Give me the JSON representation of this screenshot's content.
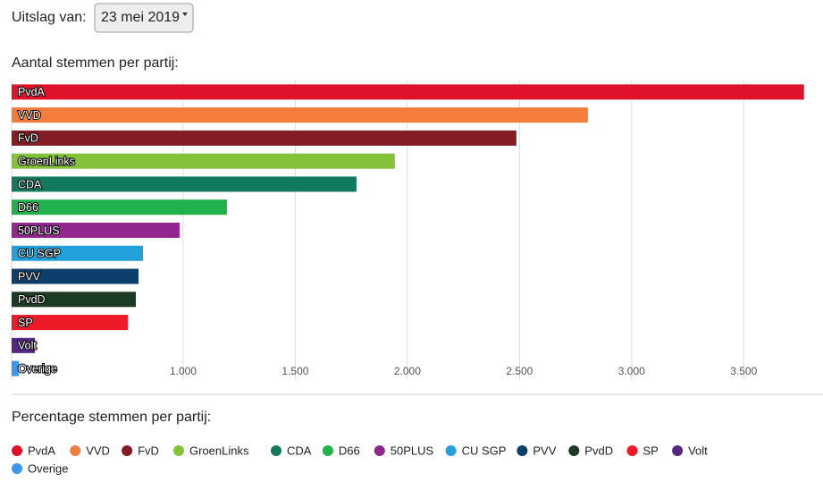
{
  "header": {
    "label": "Uitslag van:",
    "select": "23 mei 2019"
  },
  "chart_data": [
    {
      "type": "bar",
      "orientation": "horizontal",
      "title": "Aantal stemmen per partij:",
      "categories": [
        "PvdA",
        "VVD",
        "FvD",
        "GroenLinks",
        "CDA",
        "D66",
        "50PLUS",
        "CU SGP",
        "PVV",
        "PvdD",
        "SP",
        "Volt",
        "Overige"
      ],
      "values": [
        3769,
        2805,
        2486,
        1944,
        1773,
        1195,
        984,
        821,
        801,
        789,
        753,
        339,
        267
      ],
      "colors": [
        "#e0122a",
        "#f47d3b",
        "#841c23",
        "#84c23a",
        "#12795e",
        "#1fb14a",
        "#92278f",
        "#22a0db",
        "#0c3f6c",
        "#1b3c22",
        "#ee1a28",
        "#562783",
        "#3a96ee"
      ],
      "xlim": [
        235,
        3770
      ],
      "xticks": [
        {
          "value": 1000,
          "label": "1.000"
        },
        {
          "value": 1500,
          "label": "1.500"
        },
        {
          "value": 2000,
          "label": "2.000"
        },
        {
          "value": 2500,
          "label": "2.500"
        },
        {
          "value": 3000,
          "label": "3.000"
        },
        {
          "value": 3500,
          "label": "3.500"
        }
      ],
      "grid": true
    },
    {
      "type": "pie",
      "title": "Percentage stemmen per partij:",
      "categories": [
        "PvdA",
        "VVD",
        "FvD",
        "GroenLinks",
        "CDA",
        "D66",
        "50PLUS",
        "CU SGP",
        "PVV",
        "PvdD",
        "SP",
        "Volt",
        "Overige"
      ],
      "colors": [
        "#e0122a",
        "#f47d3b",
        "#841c23",
        "#84c23a",
        "#12795e",
        "#1fb14a",
        "#92278f",
        "#22a0db",
        "#0c3f6c",
        "#1b3c22",
        "#ee1a28",
        "#562783",
        "#3a96ee"
      ]
    }
  ]
}
